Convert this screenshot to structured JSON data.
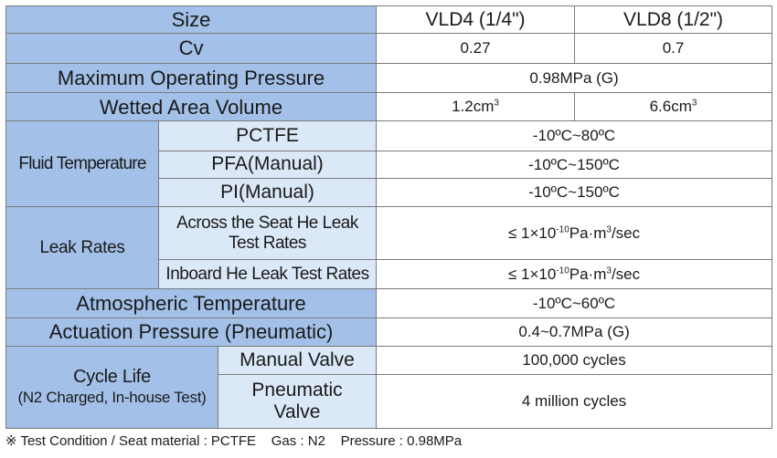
{
  "header": {
    "label": "Size",
    "col1": "VLD4 (1/4\")",
    "col2": "VLD8 (1/2\")"
  },
  "cv": {
    "label": "Cv",
    "v1": "0.27",
    "v2": "0.7"
  },
  "max_pressure": {
    "label": "Maximum Operating Pressure",
    "value": "0.98MPa (G)"
  },
  "wetted_volume": {
    "label": "Wetted Area Volume",
    "v1": "1.2cm",
    "v1_sup": "3",
    "v2": "6.6cm",
    "v2_sup": "3"
  },
  "fluid_temperature": {
    "label": "Fluid Temperature",
    "rows": [
      {
        "label": "PCTFE",
        "value": "-10ºC~80ºC"
      },
      {
        "label": "PFA(Manual)",
        "value": "-10ºC~150ºC"
      },
      {
        "label": "PI(Manual)",
        "value": "-10ºC~150ºC"
      }
    ]
  },
  "leak_rates": {
    "label": "Leak Rates",
    "rows": [
      {
        "label_line1": "Across the Seat He Leak",
        "label_line2": "Test Rates",
        "v_pre": "≤ 1×10",
        "v_exp": "-10",
        "v_mid": "Pa·m",
        "v_exp2": "3",
        "v_post": "/sec"
      },
      {
        "label": "Inboard He Leak Test Rates",
        "v_pre": "≤ 1×10",
        "v_exp": "-10",
        "v_mid": "Pa·m",
        "v_exp2": "3",
        "v_post": "/sec"
      }
    ]
  },
  "atmospheric_temperature": {
    "label": "Atmospheric Temperature",
    "value": "-10ºC~60ºC"
  },
  "actuation_pressure": {
    "label": "Actuation Pressure (Pneumatic)",
    "value": "0.4~0.7MPa (G)"
  },
  "cycle_life": {
    "label_line1": "Cycle Life",
    "label_line2": "(N2 Charged, In-house Test)",
    "rows": [
      {
        "label": "Manual Valve",
        "value": "100,000 cycles"
      },
      {
        "label_line1": "Pneumatic",
        "label_line2": "Valve",
        "value": "4 million cycles"
      }
    ]
  },
  "note": "※ Test Condition / Seat material : PCTFE    Gas : N2    Pressure : 0.98MPa"
}
